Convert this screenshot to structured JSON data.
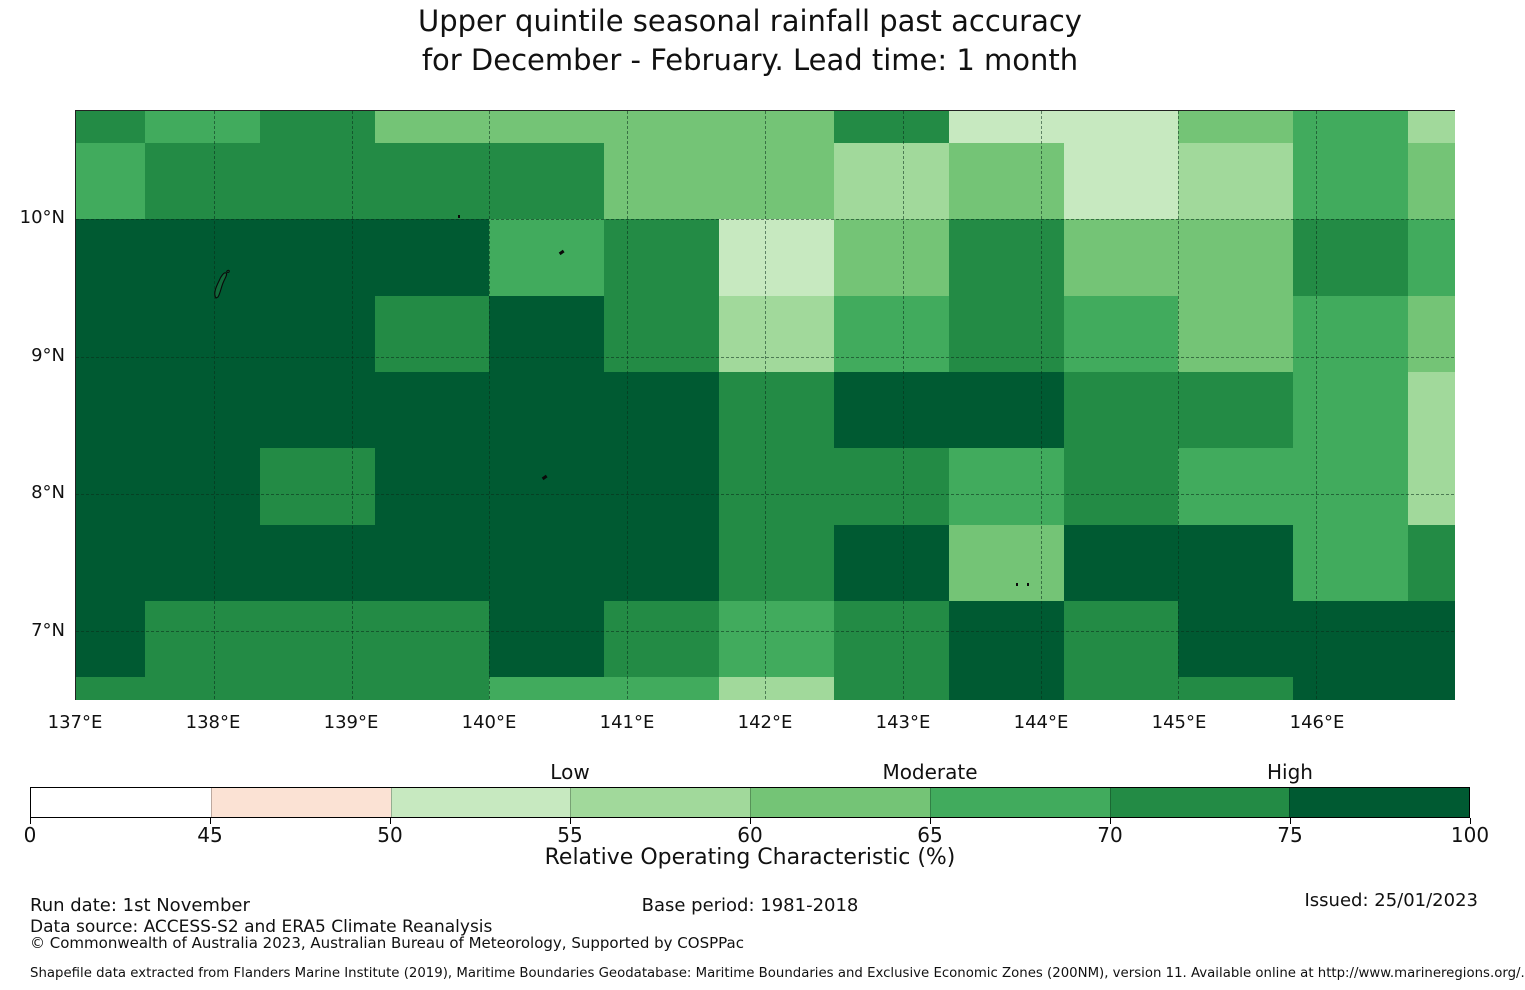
{
  "title": {
    "line1": "Upper quintile seasonal rainfall past accuracy",
    "line2": "for December - February. Lead time: 1 month"
  },
  "chart_data": {
    "type": "heatmap",
    "title": "Upper quintile seasonal rainfall past accuracy for December - February. Lead time: 1 month",
    "x_tick_labels": [
      "137°E",
      "138°E",
      "139°E",
      "140°E",
      "141°E",
      "142°E",
      "143°E",
      "144°E",
      "145°E",
      "146°E"
    ],
    "x_tick_lons": [
      137,
      138,
      139,
      140,
      141,
      142,
      143,
      144,
      145,
      146
    ],
    "y_tick_labels": [
      "10°N",
      "9°N",
      "8°N",
      "7°N"
    ],
    "y_tick_lats": [
      10,
      9,
      8,
      7
    ],
    "grid_lons": [
      138,
      139,
      140,
      141,
      142,
      143,
      144,
      145,
      146
    ],
    "grid_lats": [
      7,
      8,
      9,
      10
    ],
    "lon_range": [
      137.0,
      147.0
    ],
    "lat_range": [
      6.507,
      10.79
    ],
    "col_edges_lon": [
      137.0,
      137.5,
      138.3333,
      139.1667,
      140.0,
      140.8333,
      141.6667,
      142.5,
      143.3333,
      144.1667,
      145.0,
      145.8333,
      146.6667,
      147.0
    ],
    "row_edges_lat": [
      10.79,
      10.5556,
      10.0,
      9.4444,
      8.8889,
      8.3333,
      7.7778,
      7.2222,
      6.6667,
      6.507
    ],
    "values": [
      [
        "70-75",
        "65-70",
        "70-75",
        "60-65",
        "60-65",
        "60-65",
        "60-65",
        "70-75",
        "50-55",
        "50-55",
        "60-65",
        "65-70",
        "55-60"
      ],
      [
        "65-70",
        "70-75",
        "70-75",
        "70-75",
        "70-75",
        "60-65",
        "60-65",
        "55-60",
        "60-65",
        "50-55",
        "55-60",
        "65-70",
        "60-65"
      ],
      [
        "75-100",
        "75-100",
        "75-100",
        "75-100",
        "65-70",
        "70-75",
        "50-55",
        "60-65",
        "70-75",
        "60-65",
        "60-65",
        "70-75",
        "65-70"
      ],
      [
        "75-100",
        "75-100",
        "75-100",
        "70-75",
        "75-100",
        "70-75",
        "55-60",
        "65-70",
        "70-75",
        "65-70",
        "60-65",
        "65-70",
        "60-65"
      ],
      [
        "75-100",
        "75-100",
        "75-100",
        "75-100",
        "75-100",
        "75-100",
        "70-75",
        "75-100",
        "75-100",
        "70-75",
        "70-75",
        "65-70",
        "55-60"
      ],
      [
        "75-100",
        "75-100",
        "70-75",
        "75-100",
        "75-100",
        "75-100",
        "70-75",
        "70-75",
        "65-70",
        "70-75",
        "65-70",
        "65-70",
        "55-60"
      ],
      [
        "75-100",
        "75-100",
        "75-100",
        "75-100",
        "75-100",
        "75-100",
        "70-75",
        "75-100",
        "60-65",
        "75-100",
        "75-100",
        "65-70",
        "70-75"
      ],
      [
        "75-100",
        "70-75",
        "70-75",
        "70-75",
        "75-100",
        "70-75",
        "65-70",
        "70-75",
        "75-100",
        "70-75",
        "75-100",
        "75-100",
        "75-100"
      ],
      [
        "70-75",
        "70-75",
        "70-75",
        "70-75",
        "65-70",
        "65-70",
        "55-60",
        "70-75",
        "75-100",
        "70-75",
        "70-75",
        "75-100",
        "75-100"
      ]
    ],
    "bins": [
      {
        "range": "0-45",
        "color": "#ffffff"
      },
      {
        "range": "45-50",
        "color": "#fbe2d4"
      },
      {
        "range": "50-55",
        "color": "#c7e9c0"
      },
      {
        "range": "55-60",
        "color": "#a1d99b"
      },
      {
        "range": "60-65",
        "color": "#74c476"
      },
      {
        "range": "65-70",
        "color": "#41ab5d"
      },
      {
        "range": "70-75",
        "color": "#238b45"
      },
      {
        "range": "75-100",
        "color": "#005a32"
      }
    ],
    "legend": {
      "ticks": [
        "0",
        "45",
        "50",
        "55",
        "60",
        "65",
        "70",
        "75",
        "100"
      ],
      "zone_labels": [
        {
          "label": "Low",
          "tick_index": 3
        },
        {
          "label": "Moderate",
          "tick_index": 5
        },
        {
          "label": "High",
          "tick_index": 7
        }
      ],
      "axis_label": "Relative Operating Characteristic (%)",
      "position": "bottom"
    },
    "islands": [
      {
        "name": "yap-island",
        "lon": 138.07,
        "lat": 9.52,
        "kind": "outline"
      },
      {
        "name": "islet-dot",
        "lon": 139.78,
        "lat": 10.02,
        "kind": "dot"
      },
      {
        "name": "islet-dash",
        "lon": 140.52,
        "lat": 9.76,
        "kind": "dash"
      },
      {
        "name": "islet-dash",
        "lon": 140.4,
        "lat": 8.12,
        "kind": "dash"
      },
      {
        "name": "islet-dot",
        "lon": 143.83,
        "lat": 7.34,
        "kind": "dot"
      },
      {
        "name": "islet-dot",
        "lon": 143.91,
        "lat": 7.34,
        "kind": "dot"
      }
    ]
  },
  "footer": {
    "run_date": "Run date: 1st November",
    "base_period": "Base period: 1981-2018",
    "issued": "Issued: 25/01/2023",
    "data_source": "Data source: ACCESS-S2 and ERA5 Climate Reanalysis",
    "copyright": "© Commonwealth of Australia 2023, Australian Bureau of Meteorology, Supported by COSPPac",
    "shapefile_note": "Shapefile data extracted from Flanders Marine Institute (2019), Maritime Boundaries Geodatabase: Maritime Boundaries and Exclusive Economic Zones (200NM), version 11. Available online at http://www.marineregions.org/."
  }
}
